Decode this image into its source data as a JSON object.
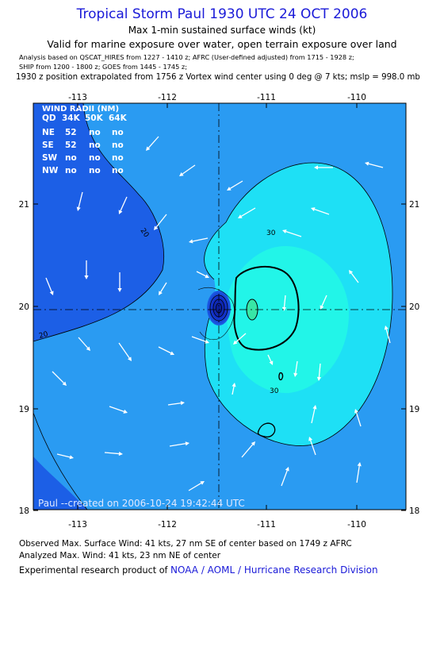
{
  "header": {
    "title": "Tropical Storm Paul 1930 UTC 24 OCT 2006",
    "subtitle": "Max 1-min sustained surface winds (kt)",
    "valid": "Valid for marine exposure over water, open terrain exposure over land",
    "analysis_line1": "Analysis based on  QSCAT_HIRES from 1227 - 1410 z;  AFRC (User-defined adjusted) from 1715 - 1928 z;",
    "analysis_line2": "SHIP from 1200 - 1800 z;  GOES from 1445 - 1745 z;",
    "position_line": "1930 z position extrapolated from 1756 z Vortex wind center using 0 deg @ 7 kts; mslp = 998.0 mb"
  },
  "map": {
    "x_ticks": [
      "-113",
      "-112",
      "-111",
      "-110"
    ],
    "y_ticks": [
      "21",
      "20",
      "19",
      "18"
    ],
    "contour_labels": [
      "20",
      "20",
      "30",
      "30"
    ],
    "credit": "Paul --created on 2006-10-24 19:42:44 UTC",
    "colors": {
      "band_0_20": "#1c5fe6",
      "band_20_30": "#2a9bf2",
      "band_30_40": "#1ee0f5",
      "band_40_plus": "#22f5e8",
      "core": "#38e6a6",
      "low_deep": "#0d24b0",
      "wind_arrow": "#ffffff",
      "title_blue": "#1a1ad8"
    }
  },
  "wind_radii": {
    "title": "WIND RADII (NM)",
    "header": [
      "QD",
      "34K",
      "50K",
      "64K"
    ],
    "rows": [
      [
        "NE",
        "52",
        "no",
        "no"
      ],
      [
        "SE",
        "52",
        "no",
        "no"
      ],
      [
        "SW",
        "no",
        "no",
        "no"
      ],
      [
        "NW",
        "no",
        "no",
        "no"
      ]
    ]
  },
  "footer": {
    "observed": "Observed Max. Surface Wind: 41 kts, 27 nm SE of center based on 1749 z AFRC",
    "analyzed": "Analyzed Max. Wind: 41 kts, 23 nm NE of center",
    "experimental_prefix": "Experimental research product of ",
    "org": "NOAA / AOML / Hurricane Research Division"
  }
}
